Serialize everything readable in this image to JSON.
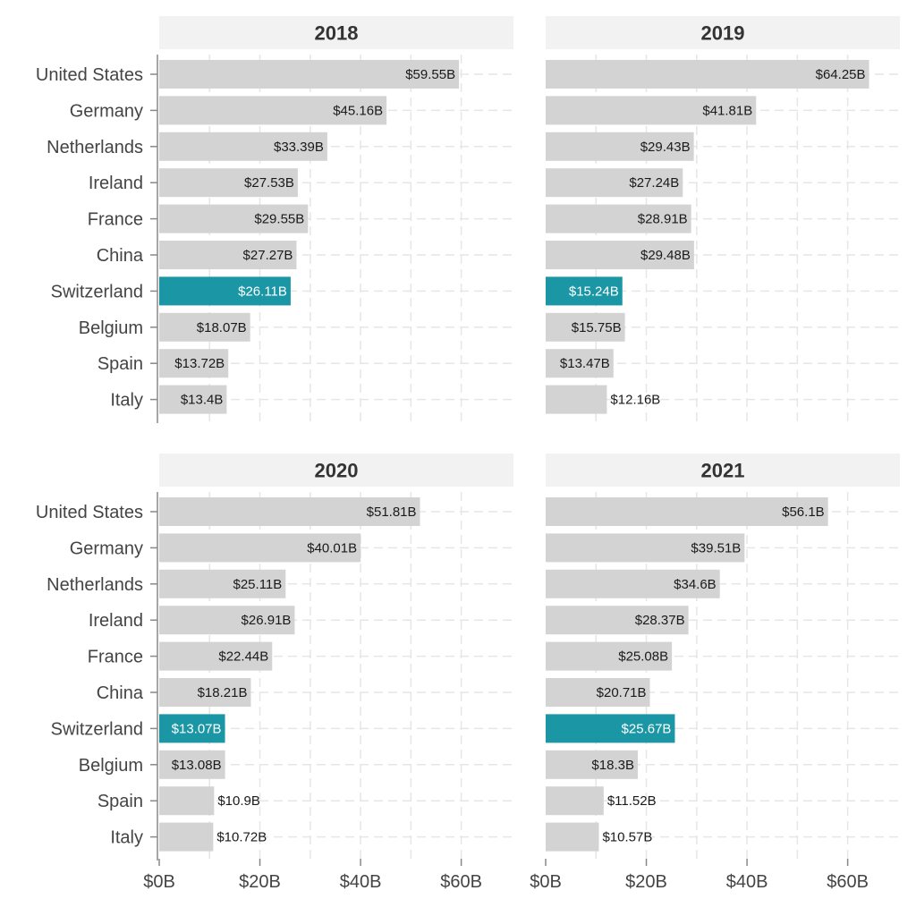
{
  "chart_data": {
    "type": "bar",
    "orientation": "horizontal",
    "layout": "facet-grid-2x2",
    "categories": [
      "United States",
      "Germany",
      "Netherlands",
      "Ireland",
      "France",
      "China",
      "Switzerland",
      "Belgium",
      "Spain",
      "Italy"
    ],
    "highlight_category": "Switzerland",
    "colors": {
      "bar": "#d3d3d3",
      "highlight": "#1a96a4",
      "panel_header": "#f2f2f2",
      "grid": "#e6e6e6",
      "axis": "#888888",
      "value_text_dark": "#1a1a1a",
      "value_text_light": "#ffffff"
    },
    "xlim": [
      0,
      70
    ],
    "x_ticks": [
      {
        "value": 0,
        "label": "$0B"
      },
      {
        "value": 20,
        "label": "$20B"
      },
      {
        "value": 40,
        "label": "$40B"
      },
      {
        "value": 60,
        "label": "$60B"
      }
    ],
    "panels": [
      {
        "title": "2018",
        "values": [
          59.55,
          45.16,
          33.39,
          27.53,
          29.55,
          27.27,
          26.11,
          18.07,
          13.72,
          13.4
        ],
        "labels": [
          "$59.55B",
          "$45.16B",
          "$33.39B",
          "$27.53B",
          "$29.55B",
          "$27.27B",
          "$26.11B",
          "$18.07B",
          "$13.72B",
          "$13.4B"
        ]
      },
      {
        "title": "2019",
        "values": [
          64.25,
          41.81,
          29.43,
          27.24,
          28.91,
          29.48,
          15.24,
          15.75,
          13.47,
          12.16
        ],
        "labels": [
          "$64.25B",
          "$41.81B",
          "$29.43B",
          "$27.24B",
          "$28.91B",
          "$29.48B",
          "$15.24B",
          "$15.75B",
          "$13.47B",
          "$12.16B"
        ]
      },
      {
        "title": "2020",
        "values": [
          51.81,
          40.01,
          25.11,
          26.91,
          22.44,
          18.21,
          13.07,
          13.08,
          10.9,
          10.72
        ],
        "labels": [
          "$51.81B",
          "$40.01B",
          "$25.11B",
          "$26.91B",
          "$22.44B",
          "$18.21B",
          "$13.07B",
          "$13.08B",
          "$10.9B",
          "$10.72B"
        ]
      },
      {
        "title": "2021",
        "values": [
          56.1,
          39.51,
          34.6,
          28.37,
          25.08,
          20.71,
          25.67,
          18.3,
          11.52,
          10.57
        ],
        "labels": [
          "$56.1B",
          "$39.51B",
          "$34.6B",
          "$28.37B",
          "$25.08B",
          "$20.71B",
          "$25.67B",
          "$18.3B",
          "$11.52B",
          "$10.57B"
        ]
      }
    ]
  }
}
